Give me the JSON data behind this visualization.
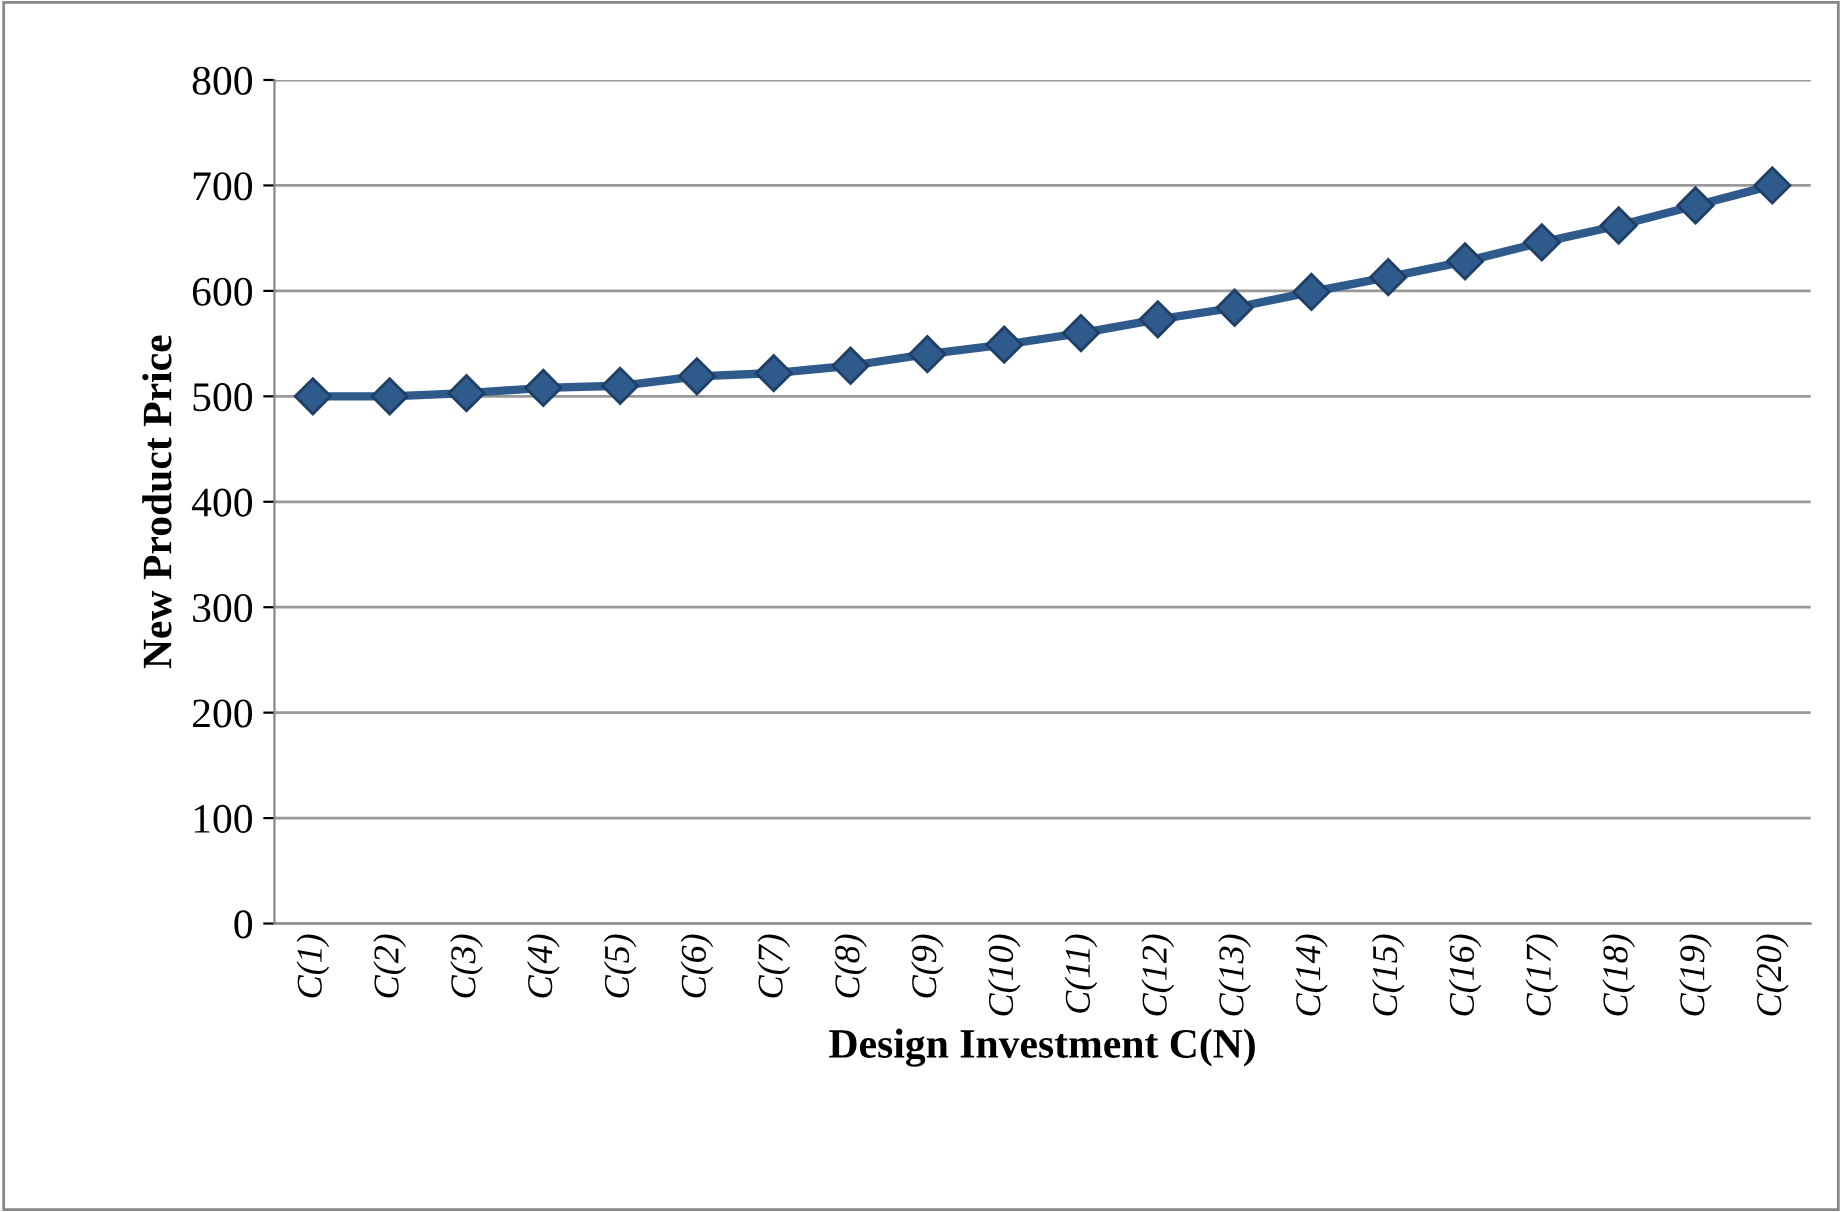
{
  "chart_data": {
    "type": "line",
    "xlabel": "Design Investment C(N)",
    "ylabel": "New Product Price",
    "categories": [
      "C(1)",
      "C(2)",
      "C(3)",
      "C(4)",
      "C(5)",
      "C(6)",
      "C(7)",
      "C(8)",
      "C(9)",
      "C(10)",
      "C(11)",
      "C(12)",
      "C(13)",
      "C(14)",
      "C(15)",
      "C(16)",
      "C(17)",
      "C(18)",
      "C(19)",
      "C(20)"
    ],
    "series": [
      {
        "color": "#2e5a8c",
        "values": [
          500,
          500,
          503,
          508,
          510,
          519,
          522,
          529,
          540,
          549,
          560,
          573,
          584,
          599,
          613,
          628,
          646,
          662,
          681,
          700
        ]
      }
    ],
    "ylim": [
      0,
      800
    ],
    "yticks": [
      0,
      100,
      200,
      300,
      400,
      500,
      600,
      700,
      800
    ],
    "grid": "y",
    "marker": "diamond",
    "line_style": "solid"
  }
}
